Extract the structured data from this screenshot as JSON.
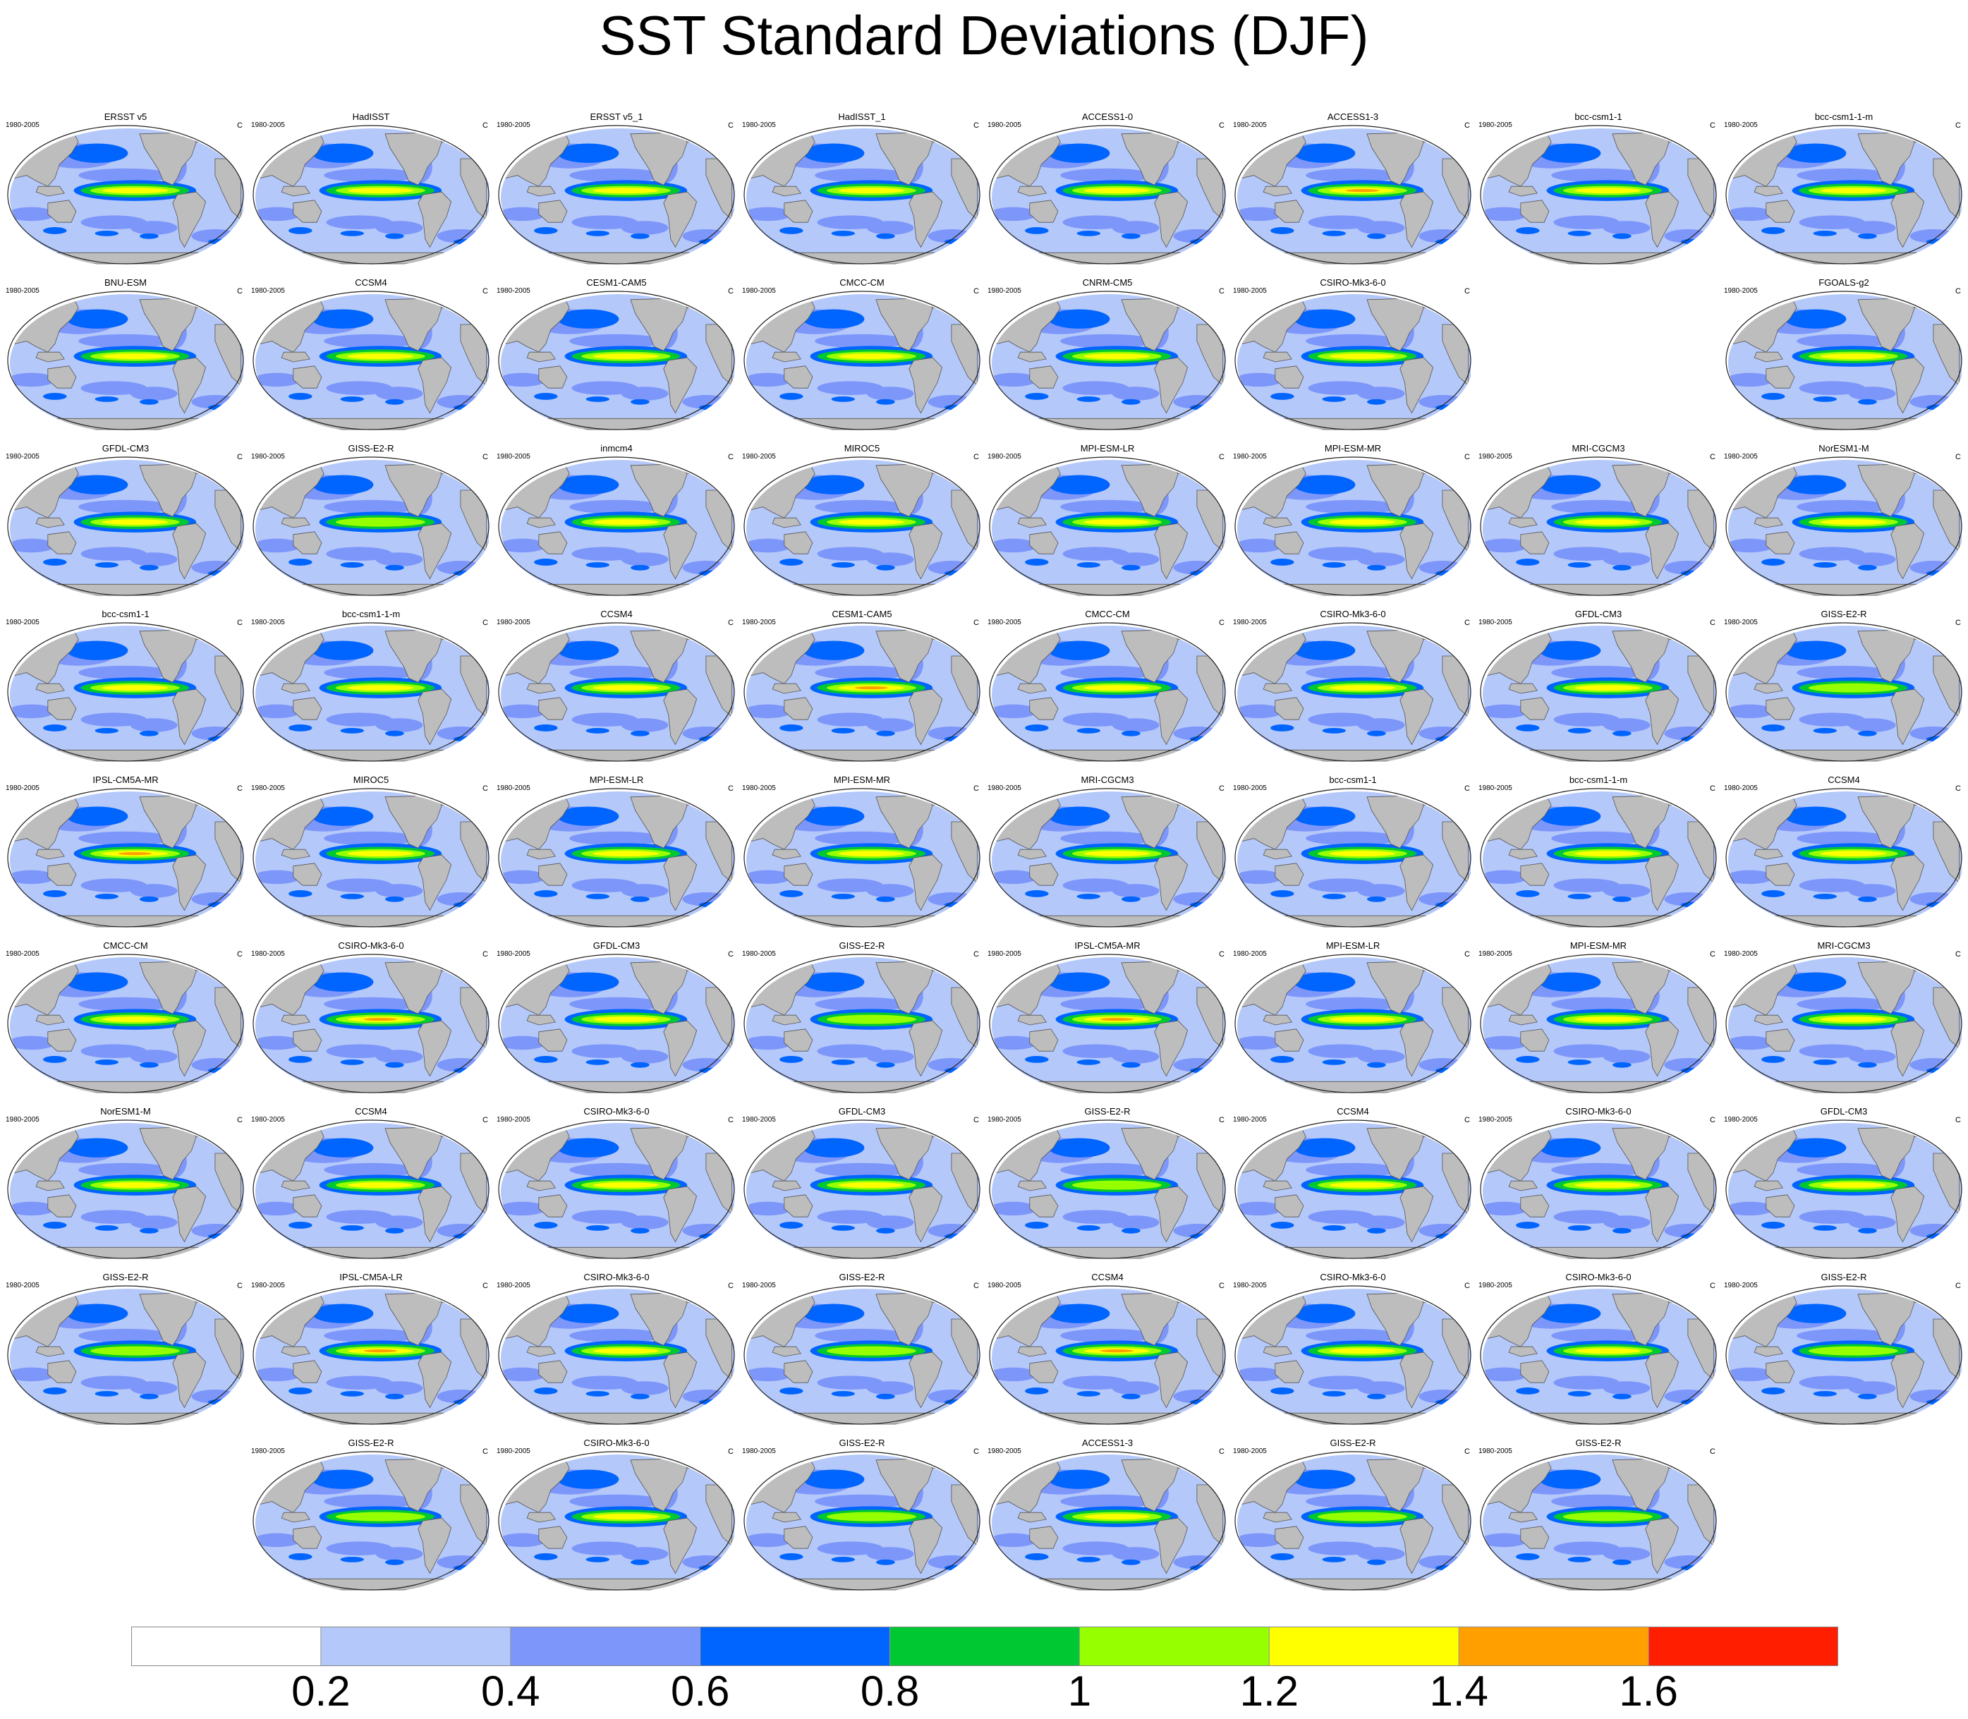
{
  "title": "SST Standard Deviations (DJF)",
  "chart_data": {
    "type": "heatmap",
    "title": "SST Standard Deviations (DJF)",
    "panel_left_label": "1980-2005",
    "panel_right_label": "C",
    "colorbar": {
      "levels": [
        "0.2",
        "0.4",
        "0.6",
        "0.8",
        "1",
        "1.2",
        "1.4",
        "1.6"
      ],
      "colors": [
        "#ffffff",
        "#b4c8fa",
        "#7d96fa",
        "#0064ff",
        "#00c832",
        "#96ff00",
        "#ffff00",
        "#ffa000",
        "#ff1e00"
      ],
      "land_color": "#bdbdbd"
    },
    "panels": [
      {
        "name": "ERSST v5",
        "row": 0,
        "col": 0,
        "strength": 1.25
      },
      {
        "name": "HadISST",
        "row": 0,
        "col": 1,
        "strength": 1.2
      },
      {
        "name": "ERSST v5_1",
        "row": 0,
        "col": 2,
        "strength": 1.25
      },
      {
        "name": "HadISST_1",
        "row": 0,
        "col": 3,
        "strength": 1.2
      },
      {
        "name": "ACCESS1-0",
        "row": 0,
        "col": 4,
        "strength": 1.3
      },
      {
        "name": "ACCESS1-3",
        "row": 0,
        "col": 5,
        "strength": 1.4
      },
      {
        "name": "bcc-csm1-1",
        "row": 0,
        "col": 6,
        "strength": 1.3
      },
      {
        "name": "bcc-csm1-1-m",
        "row": 0,
        "col": 7,
        "strength": 1.3
      },
      {
        "name": "BNU-ESM",
        "row": 1,
        "col": 0,
        "strength": 1.25
      },
      {
        "name": "CCSM4",
        "row": 1,
        "col": 1,
        "strength": 1.3
      },
      {
        "name": "CESM1-CAM5",
        "row": 1,
        "col": 2,
        "strength": 1.3
      },
      {
        "name": "CMCC-CM",
        "row": 1,
        "col": 3,
        "strength": 1.3
      },
      {
        "name": "CNRM-CM5",
        "row": 1,
        "col": 4,
        "strength": 1.3
      },
      {
        "name": "CSIRO-Mk3-6-0",
        "row": 1,
        "col": 5,
        "strength": 1.25
      },
      {
        "name": "FGOALS-g2",
        "row": 1,
        "col": 7,
        "strength": 1.25
      },
      {
        "name": "GFDL-CM3",
        "row": 2,
        "col": 0,
        "strength": 1.3
      },
      {
        "name": "GISS-E2-R",
        "row": 2,
        "col": 1,
        "strength": 1.1
      },
      {
        "name": "inmcm4",
        "row": 2,
        "col": 2,
        "strength": 1.3
      },
      {
        "name": "MIROC5",
        "row": 2,
        "col": 3,
        "strength": 1.3
      },
      {
        "name": "MPI-ESM-LR",
        "row": 2,
        "col": 4,
        "strength": 1.3
      },
      {
        "name": "MPI-ESM-MR",
        "row": 2,
        "col": 5,
        "strength": 1.3
      },
      {
        "name": "MRI-CGCM3",
        "row": 2,
        "col": 6,
        "strength": 1.3
      },
      {
        "name": "NorESM1-M",
        "row": 2,
        "col": 7,
        "strength": 1.3
      },
      {
        "name": "bcc-csm1-1",
        "row": 3,
        "col": 0,
        "strength": 1.3
      },
      {
        "name": "bcc-csm1-1-m",
        "row": 3,
        "col": 1,
        "strength": 1.3
      },
      {
        "name": "CCSM4",
        "row": 3,
        "col": 2,
        "strength": 1.35
      },
      {
        "name": "CESM1-CAM5",
        "row": 3,
        "col": 3,
        "strength": 1.4
      },
      {
        "name": "CMCC-CM",
        "row": 3,
        "col": 4,
        "strength": 1.3
      },
      {
        "name": "CSIRO-Mk3-6-0",
        "row": 3,
        "col": 5,
        "strength": 1.3
      },
      {
        "name": "GFDL-CM3",
        "row": 3,
        "col": 6,
        "strength": 1.3
      },
      {
        "name": "GISS-E2-R",
        "row": 3,
        "col": 7,
        "strength": 1.1
      },
      {
        "name": "IPSL-CM5A-MR",
        "row": 4,
        "col": 0,
        "strength": 1.4
      },
      {
        "name": "MIROC5",
        "row": 4,
        "col": 1,
        "strength": 1.3
      },
      {
        "name": "MPI-ESM-LR",
        "row": 4,
        "col": 2,
        "strength": 1.3
      },
      {
        "name": "MPI-ESM-MR",
        "row": 4,
        "col": 3,
        "strength": 1.3
      },
      {
        "name": "MRI-CGCM3",
        "row": 4,
        "col": 4,
        "strength": 1.3
      },
      {
        "name": "bcc-csm1-1",
        "row": 4,
        "col": 5,
        "strength": 1.3
      },
      {
        "name": "bcc-csm1-1-m",
        "row": 4,
        "col": 6,
        "strength": 1.35
      },
      {
        "name": "CCSM4",
        "row": 4,
        "col": 7,
        "strength": 1.35
      },
      {
        "name": "CMCC-CM",
        "row": 5,
        "col": 0,
        "strength": 1.3
      },
      {
        "name": "CSIRO-Mk3-6-0",
        "row": 5,
        "col": 1,
        "strength": 1.4
      },
      {
        "name": "GFDL-CM3",
        "row": 5,
        "col": 2,
        "strength": 1.3
      },
      {
        "name": "GISS-E2-R",
        "row": 5,
        "col": 3,
        "strength": 1.1
      },
      {
        "name": "IPSL-CM5A-MR",
        "row": 5,
        "col": 4,
        "strength": 1.4
      },
      {
        "name": "MPI-ESM-LR",
        "row": 5,
        "col": 5,
        "strength": 1.3
      },
      {
        "name": "MPI-ESM-MR",
        "row": 5,
        "col": 6,
        "strength": 1.3
      },
      {
        "name": "MRI-CGCM3",
        "row": 5,
        "col": 7,
        "strength": 1.3
      },
      {
        "name": "NorESM1-M",
        "row": 6,
        "col": 0,
        "strength": 1.3
      },
      {
        "name": "CCSM4",
        "row": 6,
        "col": 1,
        "strength": 1.3
      },
      {
        "name": "CSIRO-Mk3-6-0",
        "row": 6,
        "col": 2,
        "strength": 1.3
      },
      {
        "name": "GFDL-CM3",
        "row": 6,
        "col": 3,
        "strength": 1.3
      },
      {
        "name": "GISS-E2-R",
        "row": 6,
        "col": 4,
        "strength": 1.1
      },
      {
        "name": "CCSM4",
        "row": 6,
        "col": 5,
        "strength": 1.3
      },
      {
        "name": "CSIRO-Mk3-6-0",
        "row": 6,
        "col": 6,
        "strength": 1.3
      },
      {
        "name": "GFDL-CM3",
        "row": 6,
        "col": 7,
        "strength": 1.3
      },
      {
        "name": "GISS-E2-R",
        "row": 7,
        "col": 0,
        "strength": 1.1
      },
      {
        "name": "IPSL-CM5A-LR",
        "row": 7,
        "col": 1,
        "strength": 1.4
      },
      {
        "name": "CSIRO-Mk3-6-0",
        "row": 7,
        "col": 2,
        "strength": 1.3
      },
      {
        "name": "GISS-E2-R",
        "row": 7,
        "col": 3,
        "strength": 1.1
      },
      {
        "name": "CCSM4",
        "row": 7,
        "col": 4,
        "strength": 1.4
      },
      {
        "name": "CSIRO-Mk3-6-0",
        "row": 7,
        "col": 5,
        "strength": 1.3
      },
      {
        "name": "CSIRO-Mk3-6-0",
        "row": 7,
        "col": 6,
        "strength": 1.3
      },
      {
        "name": "GISS-E2-R",
        "row": 7,
        "col": 7,
        "strength": 1.1
      },
      {
        "name": "GISS-E2-R",
        "row": 8,
        "col": 1,
        "strength": 1.1
      },
      {
        "name": "CSIRO-Mk3-6-0",
        "row": 8,
        "col": 2,
        "strength": 1.3
      },
      {
        "name": "GISS-E2-R",
        "row": 8,
        "col": 3,
        "strength": 1.1
      },
      {
        "name": "ACCESS1-3",
        "row": 8,
        "col": 4,
        "strength": 1.3
      },
      {
        "name": "GISS-E2-R",
        "row": 8,
        "col": 5,
        "strength": 1.1
      },
      {
        "name": "GISS-E2-R",
        "row": 8,
        "col": 6,
        "strength": 1.1
      }
    ]
  }
}
